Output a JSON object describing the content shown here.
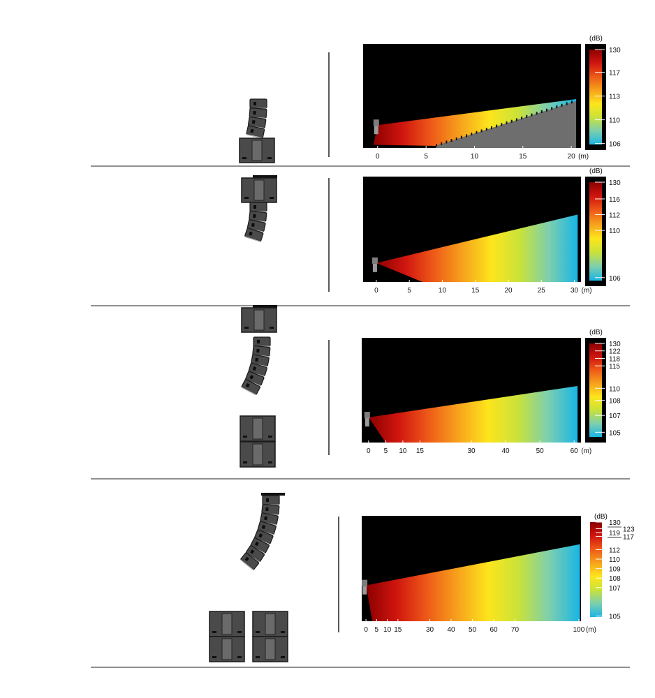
{
  "colors": {
    "background": "#ffffff",
    "plot_background": "#000000",
    "audience_floor": "#6e6e6e",
    "speaker_body": "#4a4a4a",
    "speaker_edge": "#1a1a1a",
    "divider": "#222222",
    "gradient": [
      "#8b0000",
      "#d0150f",
      "#ee5a18",
      "#f7a21c",
      "#fde51c",
      "#c9e23a",
      "#7dcfae",
      "#19b5e6"
    ]
  },
  "chart_data": [
    {
      "type": "heatmap",
      "system": {
        "line_array_cabinets": 4,
        "subwoofers_above": 0,
        "subwoofers_below": 1,
        "sub_columns": 1
      },
      "x_unit": "(m)",
      "x_range": [
        -1.5,
        21
      ],
      "x_ticks": [
        0,
        5,
        10,
        15,
        20
      ],
      "coverage": {
        "start_level": 0.78,
        "end_distance": 20.5,
        "end_level": 0.53,
        "floor_contact": 6
      },
      "audience_tiers": {
        "start": 6,
        "end": 20.5,
        "start_height": 0.02,
        "end_height": 0.45
      },
      "scale_unit": "(dB)",
      "scale": [
        {
          "label": "130",
          "pos": 0.0
        },
        {
          "label": "117",
          "pos": 0.24
        },
        {
          "label": "113",
          "pos": 0.49
        },
        {
          "label": "110",
          "pos": 0.74
        },
        {
          "label": "106",
          "pos": 0.99
        }
      ]
    },
    {
      "type": "heatmap",
      "system": {
        "line_array_cabinets": 4,
        "subwoofers_above": 1,
        "subwoofers_below": 0,
        "sub_columns": 1
      },
      "x_unit": "(m)",
      "x_range": [
        -2,
        31
      ],
      "x_ticks": [
        0,
        5,
        10,
        15,
        20,
        25,
        30
      ],
      "coverage": {
        "start_level": 0.82,
        "end_distance": 30.5,
        "end_level": 0.36,
        "floor_contact": 7
      },
      "scale_unit": "(dB)",
      "scale": [
        {
          "label": "130",
          "pos": 0.0
        },
        {
          "label": "116",
          "pos": 0.17
        },
        {
          "label": "112",
          "pos": 0.33
        },
        {
          "label": "110",
          "pos": 0.49
        },
        {
          "label": "106",
          "pos": 0.97
        }
      ]
    },
    {
      "type": "heatmap",
      "system": {
        "line_array_cabinets": 6,
        "subwoofers_above": 1,
        "subwoofers_below": 2,
        "sub_columns": 1
      },
      "x_unit": "(m)",
      "x_range": [
        -2,
        62
      ],
      "x_ticks": [
        0,
        5,
        10,
        15,
        30,
        40,
        50,
        60
      ],
      "coverage": {
        "start_level": 0.76,
        "end_distance": 61,
        "end_level": 0.46,
        "floor_contact": 5
      },
      "scale_unit": "(dB)",
      "scale": [
        {
          "label": "130",
          "pos": 0.0
        },
        {
          "label": "122",
          "pos": 0.08
        },
        {
          "label": "118",
          "pos": 0.16
        },
        {
          "label": "115",
          "pos": 0.24
        },
        {
          "label": "110",
          "pos": 0.48
        },
        {
          "label": "108",
          "pos": 0.61
        },
        {
          "label": "107",
          "pos": 0.77
        },
        {
          "label": "105",
          "pos": 0.95
        }
      ]
    },
    {
      "type": "heatmap",
      "system": {
        "line_array_cabinets": 8,
        "subwoofers_above": 0,
        "subwoofers_below": 2,
        "sub_columns": 2
      },
      "x_unit": "(m)",
      "x_range": [
        -2,
        101
      ],
      "x_ticks": [
        0,
        5,
        10,
        15,
        30,
        40,
        50,
        60,
        70,
        100
      ],
      "coverage": {
        "start_level": 0.66,
        "end_distance": 100.5,
        "end_level": 0.27,
        "floor_contact": 3
      },
      "scale_unit": "(dB)",
      "scale": [
        {
          "label": "130",
          "pos": 0.0,
          "boxed": true
        },
        {
          "label": "123",
          "pos": 0.07,
          "side": "right"
        },
        {
          "label": "119",
          "pos": 0.11,
          "boxed": true
        },
        {
          "label": "117",
          "pos": 0.15,
          "side": "right"
        },
        {
          "label": "112",
          "pos": 0.29
        },
        {
          "label": "110",
          "pos": 0.39
        },
        {
          "label": "109",
          "pos": 0.49
        },
        {
          "label": "108",
          "pos": 0.59
        },
        {
          "label": "107",
          "pos": 0.69
        },
        {
          "label": "105",
          "pos": 0.99
        }
      ]
    }
  ]
}
